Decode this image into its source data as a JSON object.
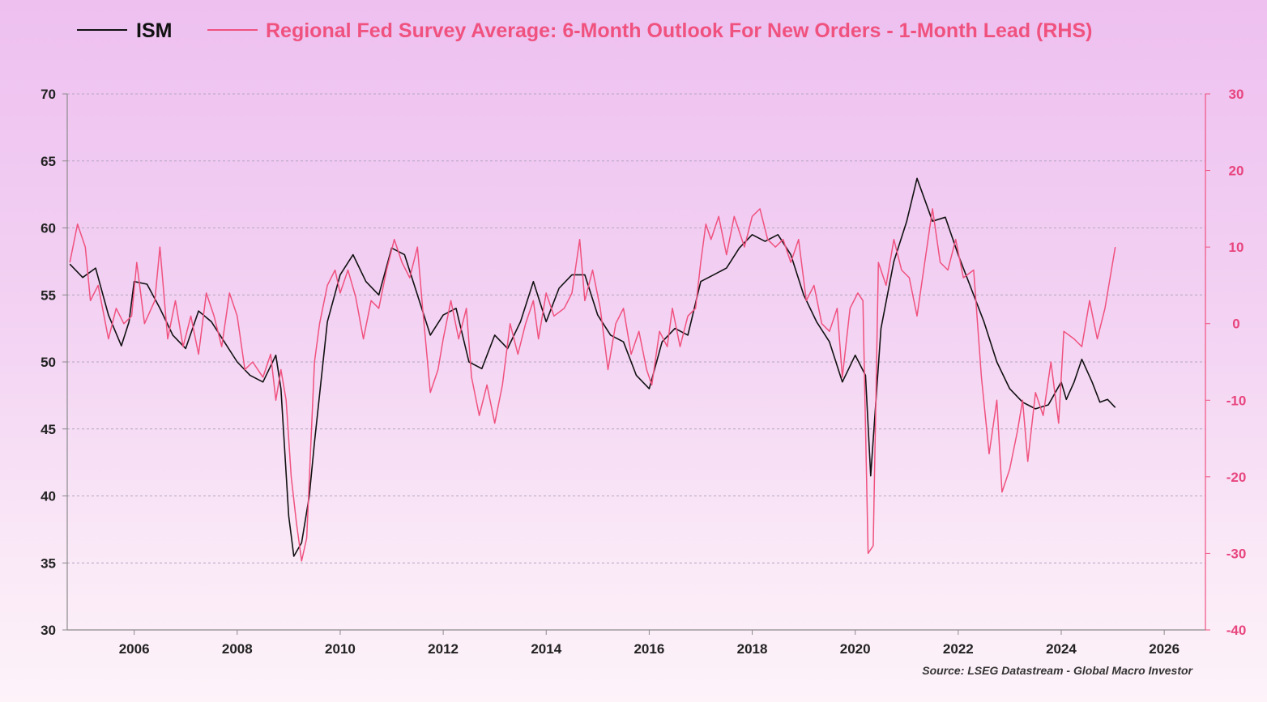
{
  "chart_data": {
    "type": "line",
    "title": "",
    "source": "Source: LSEG Datastream - Global Macro Investor",
    "xlabel": "",
    "x_ticks": [
      "2006",
      "2008",
      "2010",
      "2012",
      "2014",
      "2016",
      "2018",
      "2020",
      "2022",
      "2024",
      "2026"
    ],
    "left_axis": {
      "label": "ISM",
      "range": [
        30,
        70
      ],
      "ticks": [
        "70",
        "65",
        "60",
        "55",
        "50",
        "45",
        "40",
        "35",
        "30"
      ]
    },
    "right_axis": {
      "label": "RHS",
      "range": [
        -40,
        30
      ],
      "ticks": [
        "30",
        "20",
        "10",
        "0",
        "-10",
        "-20",
        "-30",
        "-40"
      ]
    },
    "grid": true,
    "legend_position": "top",
    "colors": {
      "ism": "#111111",
      "fed": "#f0527f",
      "grid": "#b4a6c0",
      "axis": "#8a8a8a"
    },
    "series": [
      {
        "name": "ISM",
        "axis": "left",
        "color": "#111111",
        "points": [
          [
            2004.75,
            57.3
          ],
          [
            2005.0,
            56.3
          ],
          [
            2005.25,
            57.0
          ],
          [
            2005.5,
            53.5
          ],
          [
            2005.75,
            51.2
          ],
          [
            2005.9,
            53.0
          ],
          [
            2006.0,
            56.0
          ],
          [
            2006.25,
            55.8
          ],
          [
            2006.5,
            54.0
          ],
          [
            2006.75,
            52.0
          ],
          [
            2007.0,
            51.0
          ],
          [
            2007.25,
            53.8
          ],
          [
            2007.5,
            53.0
          ],
          [
            2007.75,
            51.5
          ],
          [
            2008.0,
            50.0
          ],
          [
            2008.25,
            49.0
          ],
          [
            2008.5,
            48.5
          ],
          [
            2008.75,
            50.5
          ],
          [
            2008.85,
            48.0
          ],
          [
            2009.0,
            38.5
          ],
          [
            2009.1,
            35.5
          ],
          [
            2009.25,
            36.5
          ],
          [
            2009.4,
            40.0
          ],
          [
            2009.5,
            44.0
          ],
          [
            2009.75,
            53.0
          ],
          [
            2010.0,
            56.5
          ],
          [
            2010.25,
            58.0
          ],
          [
            2010.5,
            56.0
          ],
          [
            2010.75,
            55.0
          ],
          [
            2011.0,
            58.5
          ],
          [
            2011.25,
            58.0
          ],
          [
            2011.5,
            55.0
          ],
          [
            2011.75,
            52.0
          ],
          [
            2012.0,
            53.5
          ],
          [
            2012.25,
            54.0
          ],
          [
            2012.5,
            50.0
          ],
          [
            2012.75,
            49.5
          ],
          [
            2013.0,
            52.0
          ],
          [
            2013.25,
            51.0
          ],
          [
            2013.5,
            53.0
          ],
          [
            2013.75,
            56.0
          ],
          [
            2014.0,
            53.0
          ],
          [
            2014.25,
            55.5
          ],
          [
            2014.5,
            56.5
          ],
          [
            2014.75,
            56.5
          ],
          [
            2015.0,
            53.5
          ],
          [
            2015.25,
            52.0
          ],
          [
            2015.5,
            51.5
          ],
          [
            2015.75,
            49.0
          ],
          [
            2016.0,
            48.0
          ],
          [
            2016.25,
            51.5
          ],
          [
            2016.5,
            52.5
          ],
          [
            2016.75,
            52.0
          ],
          [
            2017.0,
            56.0
          ],
          [
            2017.25,
            56.5
          ],
          [
            2017.5,
            57.0
          ],
          [
            2017.75,
            58.5
          ],
          [
            2018.0,
            59.5
          ],
          [
            2018.25,
            59.0
          ],
          [
            2018.5,
            59.5
          ],
          [
            2018.75,
            58.0
          ],
          [
            2019.0,
            55.0
          ],
          [
            2019.25,
            53.0
          ],
          [
            2019.5,
            51.5
          ],
          [
            2019.75,
            48.5
          ],
          [
            2020.0,
            50.5
          ],
          [
            2020.2,
            49.0
          ],
          [
            2020.3,
            41.5
          ],
          [
            2020.5,
            52.5
          ],
          [
            2020.75,
            57.5
          ],
          [
            2021.0,
            60.5
          ],
          [
            2021.2,
            63.7
          ],
          [
            2021.5,
            60.5
          ],
          [
            2021.75,
            60.8
          ],
          [
            2022.0,
            58.0
          ],
          [
            2022.25,
            55.5
          ],
          [
            2022.5,
            53.0
          ],
          [
            2022.75,
            50.0
          ],
          [
            2023.0,
            48.0
          ],
          [
            2023.25,
            47.0
          ],
          [
            2023.5,
            46.5
          ],
          [
            2023.75,
            46.8
          ],
          [
            2024.0,
            48.5
          ],
          [
            2024.1,
            47.2
          ],
          [
            2024.25,
            48.5
          ],
          [
            2024.4,
            50.2
          ],
          [
            2024.6,
            48.5
          ],
          [
            2024.75,
            47.0
          ],
          [
            2024.9,
            47.2
          ],
          [
            2025.05,
            46.6
          ]
        ]
      },
      {
        "name": "Regional Fed Survey Average: 6-Month Outlook For New Orders - 1-Month Lead (RHS)",
        "axis": "right",
        "color": "#f0527f",
        "points": [
          [
            2004.75,
            8.0
          ],
          [
            2004.9,
            13.0
          ],
          [
            2005.05,
            10.0
          ],
          [
            2005.15,
            3.0
          ],
          [
            2005.3,
            5.0
          ],
          [
            2005.5,
            -2.0
          ],
          [
            2005.65,
            2.0
          ],
          [
            2005.8,
            0.0
          ],
          [
            2005.95,
            1.0
          ],
          [
            2006.05,
            8.0
          ],
          [
            2006.2,
            0.0
          ],
          [
            2006.4,
            3.0
          ],
          [
            2006.5,
            10.0
          ],
          [
            2006.65,
            -2.0
          ],
          [
            2006.8,
            3.0
          ],
          [
            2006.95,
            -3.0
          ],
          [
            2007.1,
            1.0
          ],
          [
            2007.25,
            -4.0
          ],
          [
            2007.4,
            4.0
          ],
          [
            2007.55,
            1.0
          ],
          [
            2007.7,
            -3.0
          ],
          [
            2007.85,
            4.0
          ],
          [
            2008.0,
            1.0
          ],
          [
            2008.15,
            -6.0
          ],
          [
            2008.3,
            -5.0
          ],
          [
            2008.5,
            -7.0
          ],
          [
            2008.65,
            -4.0
          ],
          [
            2008.75,
            -10.0
          ],
          [
            2008.85,
            -6.0
          ],
          [
            2008.95,
            -10.0
          ],
          [
            2009.05,
            -20.0
          ],
          [
            2009.15,
            -26.0
          ],
          [
            2009.25,
            -31.0
          ],
          [
            2009.35,
            -28.0
          ],
          [
            2009.5,
            -5.0
          ],
          [
            2009.6,
            0.0
          ],
          [
            2009.75,
            5.0
          ],
          [
            2009.9,
            7.0
          ],
          [
            2010.0,
            4.0
          ],
          [
            2010.15,
            7.0
          ],
          [
            2010.3,
            3.5
          ],
          [
            2010.45,
            -2.0
          ],
          [
            2010.6,
            3.0
          ],
          [
            2010.75,
            2.0
          ],
          [
            2010.9,
            7.0
          ],
          [
            2011.05,
            11.0
          ],
          [
            2011.2,
            8.0
          ],
          [
            2011.35,
            6.0
          ],
          [
            2011.5,
            10.0
          ],
          [
            2011.6,
            2.0
          ],
          [
            2011.75,
            -9.0
          ],
          [
            2011.9,
            -6.0
          ],
          [
            2012.0,
            -2.0
          ],
          [
            2012.15,
            3.0
          ],
          [
            2012.3,
            -2.0
          ],
          [
            2012.45,
            2.0
          ],
          [
            2012.55,
            -7.0
          ],
          [
            2012.7,
            -12.0
          ],
          [
            2012.85,
            -8.0
          ],
          [
            2013.0,
            -13.0
          ],
          [
            2013.15,
            -8.0
          ],
          [
            2013.3,
            0.0
          ],
          [
            2013.45,
            -4.0
          ],
          [
            2013.6,
            0.0
          ],
          [
            2013.75,
            3.0
          ],
          [
            2013.85,
            -2.0
          ],
          [
            2014.0,
            4.0
          ],
          [
            2014.15,
            1.0
          ],
          [
            2014.35,
            2.0
          ],
          [
            2014.5,
            4.0
          ],
          [
            2014.65,
            11.0
          ],
          [
            2014.75,
            3.0
          ],
          [
            2014.9,
            7.0
          ],
          [
            2015.05,
            2.0
          ],
          [
            2015.2,
            -6.0
          ],
          [
            2015.35,
            0.0
          ],
          [
            2015.5,
            2.0
          ],
          [
            2015.65,
            -4.0
          ],
          [
            2015.8,
            -1.0
          ],
          [
            2015.95,
            -6.0
          ],
          [
            2016.05,
            -8.0
          ],
          [
            2016.2,
            -1.0
          ],
          [
            2016.35,
            -3.0
          ],
          [
            2016.45,
            2.0
          ],
          [
            2016.6,
            -3.0
          ],
          [
            2016.75,
            1.0
          ],
          [
            2016.9,
            2.0
          ],
          [
            2017.0,
            8.0
          ],
          [
            2017.1,
            13.0
          ],
          [
            2017.2,
            11.0
          ],
          [
            2017.35,
            14.0
          ],
          [
            2017.5,
            9.0
          ],
          [
            2017.65,
            14.0
          ],
          [
            2017.85,
            10.0
          ],
          [
            2018.0,
            14.0
          ],
          [
            2018.15,
            15.0
          ],
          [
            2018.3,
            11.0
          ],
          [
            2018.45,
            10.0
          ],
          [
            2018.6,
            11.0
          ],
          [
            2018.75,
            8.0
          ],
          [
            2018.9,
            11.0
          ],
          [
            2019.05,
            3.0
          ],
          [
            2019.2,
            5.0
          ],
          [
            2019.35,
            0.0
          ],
          [
            2019.5,
            -1.0
          ],
          [
            2019.65,
            2.0
          ],
          [
            2019.75,
            -7.0
          ],
          [
            2019.9,
            2.0
          ],
          [
            2020.05,
            4.0
          ],
          [
            2020.15,
            3.0
          ],
          [
            2020.25,
            -30.0
          ],
          [
            2020.35,
            -29.0
          ],
          [
            2020.45,
            8.0
          ],
          [
            2020.6,
            5.0
          ],
          [
            2020.75,
            11.0
          ],
          [
            2020.9,
            7.0
          ],
          [
            2021.05,
            6.0
          ],
          [
            2021.2,
            1.0
          ],
          [
            2021.35,
            8.0
          ],
          [
            2021.5,
            15.0
          ],
          [
            2021.65,
            8.0
          ],
          [
            2021.8,
            7.0
          ],
          [
            2021.95,
            11.0
          ],
          [
            2022.1,
            6.0
          ],
          [
            2022.3,
            7.0
          ],
          [
            2022.45,
            -7.0
          ],
          [
            2022.6,
            -17.0
          ],
          [
            2022.75,
            -10.0
          ],
          [
            2022.85,
            -22.0
          ],
          [
            2023.0,
            -19.0
          ],
          [
            2023.15,
            -14.0
          ],
          [
            2023.25,
            -10.0
          ],
          [
            2023.35,
            -18.0
          ],
          [
            2023.5,
            -9.0
          ],
          [
            2023.65,
            -12.0
          ],
          [
            2023.8,
            -5.0
          ],
          [
            2023.95,
            -13.0
          ],
          [
            2024.05,
            -1.0
          ],
          [
            2024.25,
            -2.0
          ],
          [
            2024.4,
            -3.0
          ],
          [
            2024.55,
            3.0
          ],
          [
            2024.7,
            -2.0
          ],
          [
            2024.85,
            2.0
          ],
          [
            2025.05,
            10.0
          ]
        ]
      }
    ]
  }
}
